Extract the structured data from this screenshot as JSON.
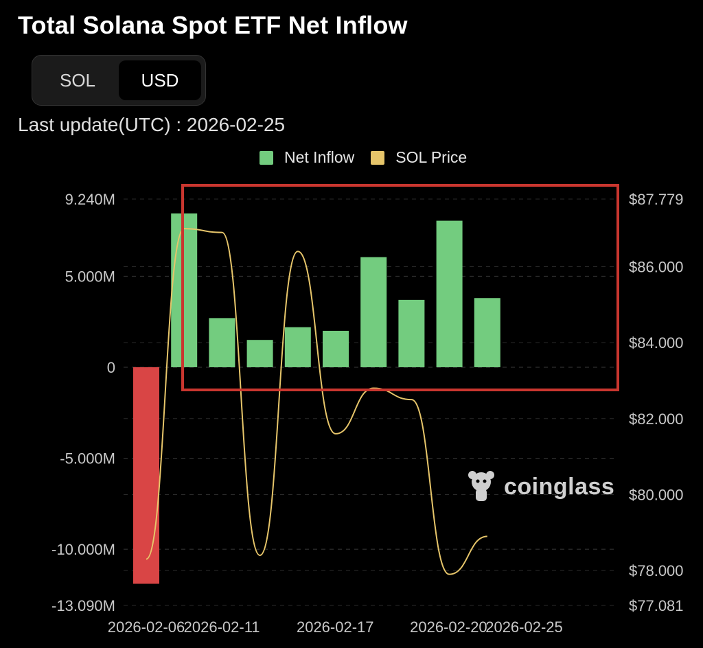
{
  "title": "Total Solana Spot ETF Net Inflow",
  "toggle": {
    "options": [
      "SOL",
      "USD"
    ],
    "selected": "USD"
  },
  "last_update": "Last update(UTC) : 2026-02-25",
  "watermark": "coinglass",
  "colors": {
    "positive": "#73cc7f",
    "negative": "#d94545",
    "price_line": "#e6c56a",
    "highlight_box": "#c9362f",
    "grid": "#3a3a3a"
  },
  "chart_data": {
    "type": "bar",
    "title": "Total Solana Spot ETF Net Inflow",
    "legend": [
      "Net Inflow",
      "SOL Price"
    ],
    "legend_position": "top-center",
    "grid": true,
    "y_left": {
      "ticks": [
        "9.240M",
        "5.000M",
        "0",
        "-5.000M",
        "-10.000M",
        "-13.090M"
      ],
      "range": [
        -13.09,
        9.24
      ],
      "unit": "M USD"
    },
    "y_right": {
      "ticks": [
        "$87.779",
        "$86.000",
        "$84.000",
        "$82.000",
        "$80.000",
        "$78.000",
        "$77.081"
      ],
      "range": [
        77.081,
        87.779
      ]
    },
    "x_tick_labels": [
      "2026-02-06",
      "2026-02-11",
      "2026-02-17",
      "2026-02-20",
      "2026-02-25"
    ],
    "series": [
      {
        "name": "Net Inflow",
        "type": "bar",
        "values": [
          -11.9,
          8.45,
          2.7,
          1.5,
          2.2,
          2.0,
          6.05,
          3.7,
          8.05,
          3.8
        ]
      },
      {
        "name": "SOL Price",
        "type": "line",
        "values": [
          78.3,
          87.0,
          86.9,
          78.4,
          86.4,
          81.6,
          82.8,
          82.5,
          77.9,
          78.9
        ]
      }
    ]
  }
}
